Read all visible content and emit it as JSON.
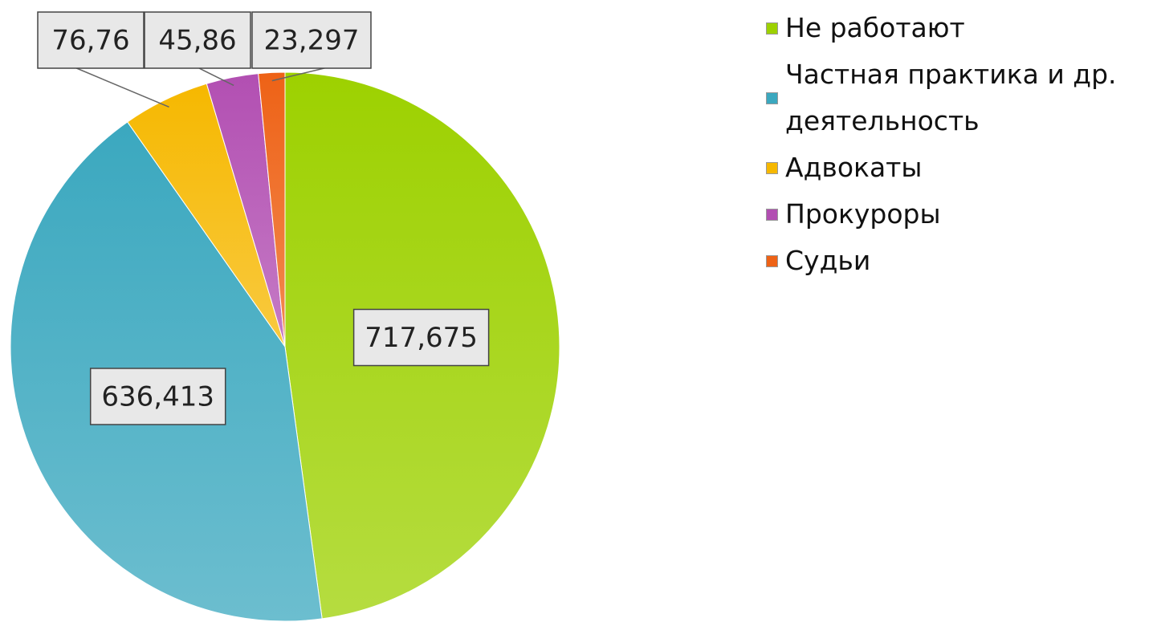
{
  "chart_data": {
    "type": "pie",
    "categories": [
      "Не работают",
      "Частная практика и др. деятельность",
      "Адвокаты",
      "Прокуроры",
      "Судьи"
    ],
    "values": [
      717.675,
      636.413,
      76.76,
      45.86,
      23.297
    ],
    "value_labels": [
      "717,675",
      "636,413",
      "76,76",
      "45,86",
      "23,297"
    ],
    "colors": [
      "#9dd100",
      "#3ba8bf",
      "#f6b800",
      "#b24fb2",
      "#ee6216"
    ],
    "legend": "right"
  }
}
